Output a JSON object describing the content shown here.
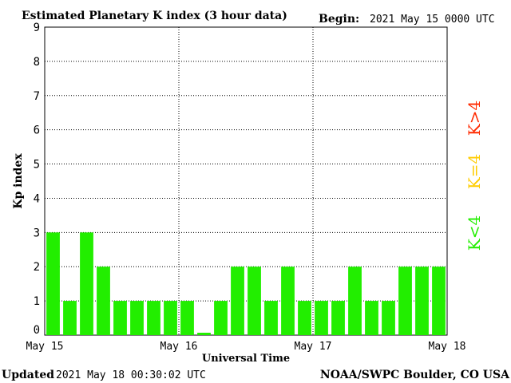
{
  "header": {
    "title": "Estimated Planetary K index (3 hour data)",
    "begin_label": "Begin:",
    "begin_value": "2021 May 15 0000 UTC"
  },
  "footer": {
    "updated_label": "Updated",
    "updated_value": "2021 May 18 00:30:02 UTC",
    "credit": "NOAA/SWPC Boulder, CO USA"
  },
  "legend": {
    "low": "K<4",
    "mid": "K=4",
    "high": "K>4",
    "colors": {
      "low": "#22ee00",
      "mid": "#ffcc00",
      "high": "#ff2a00"
    }
  },
  "chart_data": {
    "type": "bar",
    "title": "Estimated Planetary K index (3 hour data)",
    "xlabel": "Universal Time",
    "ylabel": "Kp index",
    "ylim": [
      0,
      9
    ],
    "yticks": [
      "0",
      "1",
      "2",
      "3",
      "4",
      "5",
      "6",
      "7",
      "8",
      "9"
    ],
    "xticks": [
      "May 15",
      "May 16",
      "May 17",
      "May 18"
    ],
    "interval_hours": 3,
    "values": [
      3,
      1,
      3,
      2,
      1,
      1,
      1,
      1,
      1,
      0.07,
      1,
      2,
      2,
      1,
      2,
      1,
      1,
      1,
      2,
      1,
      1,
      2,
      2,
      2
    ],
    "grid": true,
    "bar_color": "#22ee00"
  }
}
